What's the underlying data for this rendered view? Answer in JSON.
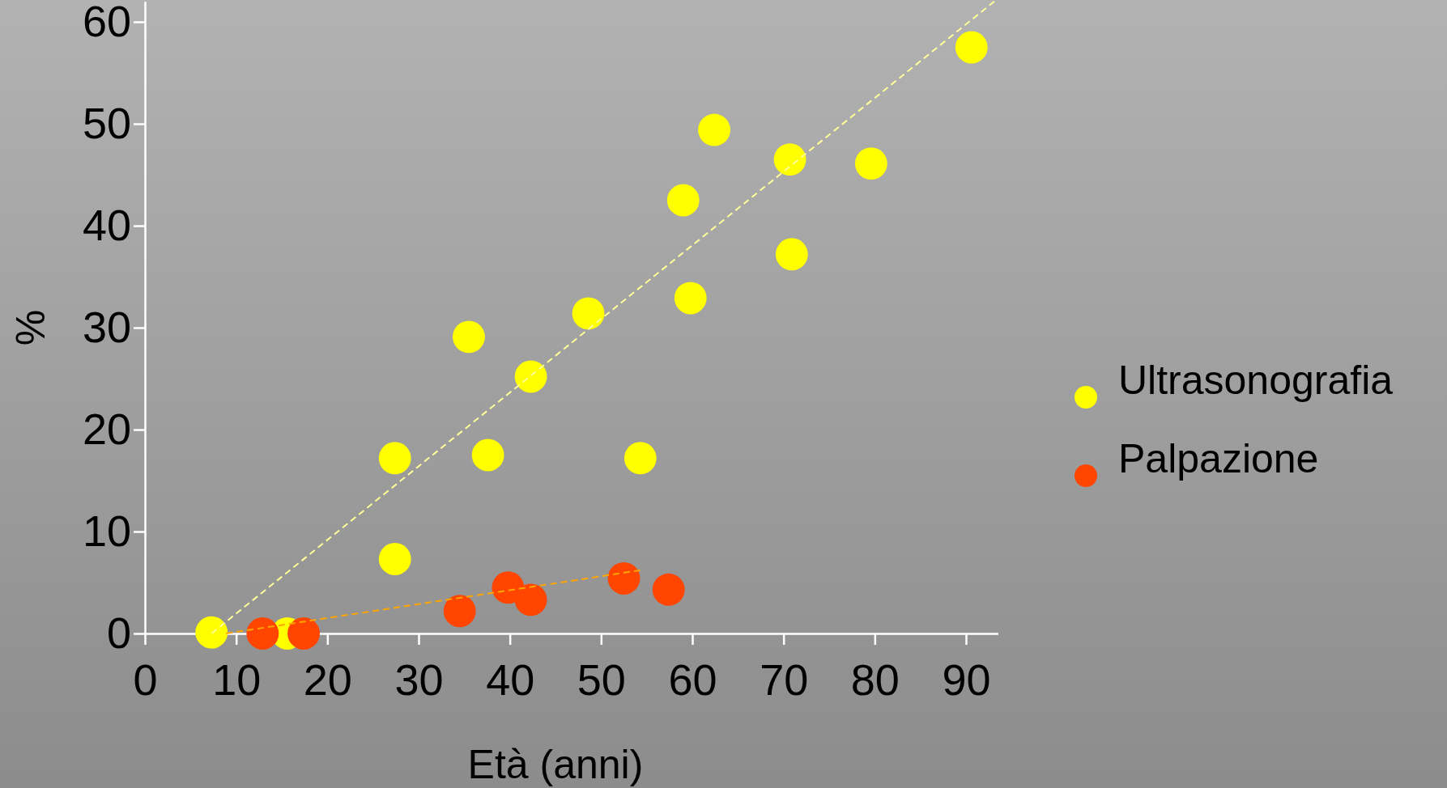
{
  "chart_data": {
    "type": "scatter",
    "xlabel": "Età (anni)",
    "ylabel": "%",
    "xlim": [
      0,
      93.5
    ],
    "ylim": [
      0,
      62
    ],
    "xticks": [
      0,
      10,
      20,
      30,
      40,
      50,
      60,
      70,
      80,
      90
    ],
    "yticks": [
      0,
      10,
      20,
      30,
      40,
      50,
      60
    ],
    "legend": "right",
    "grid": false,
    "series": [
      {
        "name": "Ultrasonografia",
        "color": "#ffff00",
        "marker": "circle",
        "x": [
          7.3,
          15.6,
          27.4,
          27.4,
          35.5,
          37.6,
          42.3,
          48.6,
          54.3,
          59.0,
          59.8,
          62.4,
          70.7,
          70.9,
          79.6,
          90.6
        ],
        "values": [
          0.1,
          0,
          17.2,
          7.3,
          29.1,
          17.5,
          25.2,
          31.4,
          17.2,
          42.5,
          32.9,
          49.4,
          46.5,
          37.2,
          46.1,
          57.5
        ]
      },
      {
        "name": "Palpazione",
        "color": "#ff4500",
        "marker": "circle",
        "x": [
          12.9,
          17.4,
          34.5,
          39.8,
          42.3,
          52.5,
          57.4
        ],
        "values": [
          0,
          0,
          2.2,
          4.5,
          3.3,
          5.4,
          4.3
        ]
      },
      {
        "type": "line",
        "color": "#ffff99",
        "line_style": "dashed",
        "x": [
          7.3,
          93.1
        ],
        "values": [
          0,
          62
        ]
      },
      {
        "type": "line",
        "color": "#ffa500",
        "line_style": "dashed",
        "x": [
          8.9,
          54.3
        ],
        "values": [
          0,
          6.2
        ]
      }
    ]
  }
}
